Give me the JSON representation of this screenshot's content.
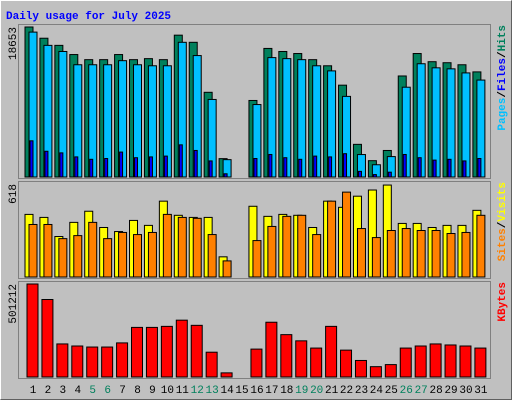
{
  "chart_data": [
    {
      "type": "bar",
      "title": "Daily usage for July 2025",
      "ylim": [
        0,
        18653
      ],
      "yticks": [
        18653
      ],
      "legend_separator": "/",
      "series": [
        {
          "name": "Hits",
          "color": "#00805c",
          "values": [
            18653,
            17257,
            16369,
            15227,
            14592,
            14592,
            15227,
            14592,
            14719,
            14592,
            17638,
            16750,
            10532,
            2284,
            0,
            9517,
            15988,
            15608,
            15354,
            14592,
            13831,
            11420,
            4060,
            2030,
            3299,
            12562,
            15354,
            14338,
            14211,
            13958,
            13070
          ]
        },
        {
          "name": "Files",
          "color": "#0000ff",
          "values": [
            4500,
            3200,
            3000,
            2500,
            2200,
            2300,
            3100,
            2400,
            2500,
            2600,
            4000,
            3300,
            2000,
            400,
            0,
            2300,
            2800,
            2400,
            2200,
            2600,
            2500,
            2900,
            700,
            300,
            600,
            2800,
            2400,
            2100,
            2200,
            2000,
            2300
          ]
        },
        {
          "name": "Pages",
          "color": "#00c0ff",
          "values": [
            18018,
            16369,
            15608,
            13958,
            13958,
            13958,
            14465,
            13958,
            13831,
            13831,
            16750,
            15100,
            9643,
            2157,
            0,
            9009,
            14846,
            14719,
            14592,
            13831,
            13196,
            10024,
            2792,
            1523,
            2538,
            11166,
            14084,
            13577,
            13450,
            12943,
            12054
          ]
        }
      ]
    },
    {
      "type": "bar",
      "ylim": [
        0,
        618
      ],
      "yticks": [
        618
      ],
      "legend_separator": "/",
      "series": [
        {
          "name": "Visits",
          "color": "#ffff00",
          "values": [
            416,
            396,
            269,
            363,
            437,
            329,
            302,
            376,
            343,
            504,
            410,
            396,
            396,
            134,
            0,
            470,
            403,
            416,
            410,
            329,
            504,
            463,
            537,
            578,
            611,
            356,
            356,
            329,
            343,
            343,
            443
          ]
        },
        {
          "name": "Sites",
          "color": "#ff8000",
          "values": [
            349,
            349,
            255,
            275,
            363,
            255,
            296,
            282,
            296,
            416,
            396,
            390,
            282,
            107,
            0,
            242,
            336,
            403,
            410,
            282,
            504,
            564,
            322,
            262,
            309,
            322,
            309,
            309,
            289,
            296,
            410
          ]
        }
      ]
    },
    {
      "type": "bar",
      "ylim": [
        0,
        501212
      ],
      "yticks": [
        501212
      ],
      "categories": [
        "1",
        "2",
        "3",
        "4",
        "5",
        "6",
        "7",
        "8",
        "9",
        "10",
        "11",
        "12",
        "13",
        "14",
        "15",
        "16",
        "17",
        "18",
        "19",
        "20",
        "21",
        "22",
        "23",
        "24",
        "25",
        "26",
        "27",
        "28",
        "29",
        "30",
        "31"
      ],
      "category_colors": [
        "#000000",
        "#000000",
        "#000000",
        "#000000",
        "#00805c",
        "#00805c",
        "#000000",
        "#000000",
        "#000000",
        "#000000",
        "#000000",
        "#00805c",
        "#00805c",
        "#000000",
        "#000000",
        "#000000",
        "#000000",
        "#000000",
        "#00805c",
        "#00805c",
        "#000000",
        "#000000",
        "#000000",
        "#000000",
        "#000000",
        "#00805c",
        "#00805c",
        "#000000",
        "#000000",
        "#000000",
        "#000000"
      ],
      "series": [
        {
          "name": "KBytes",
          "color": "#ff0000",
          "values": [
            501212,
            417678,
            178206,
            167070,
            161501,
            161501,
            183775,
            267313,
            267313,
            272882,
            306292,
            278451,
            133657,
            22276,
            0,
            150364,
            295155,
            228330,
            194916,
            155932,
            272882,
            144795,
            89104,
            55690,
            66828,
            155932,
            167070,
            178206,
            172638,
            167070,
            155932
          ]
        }
      ]
    }
  ]
}
